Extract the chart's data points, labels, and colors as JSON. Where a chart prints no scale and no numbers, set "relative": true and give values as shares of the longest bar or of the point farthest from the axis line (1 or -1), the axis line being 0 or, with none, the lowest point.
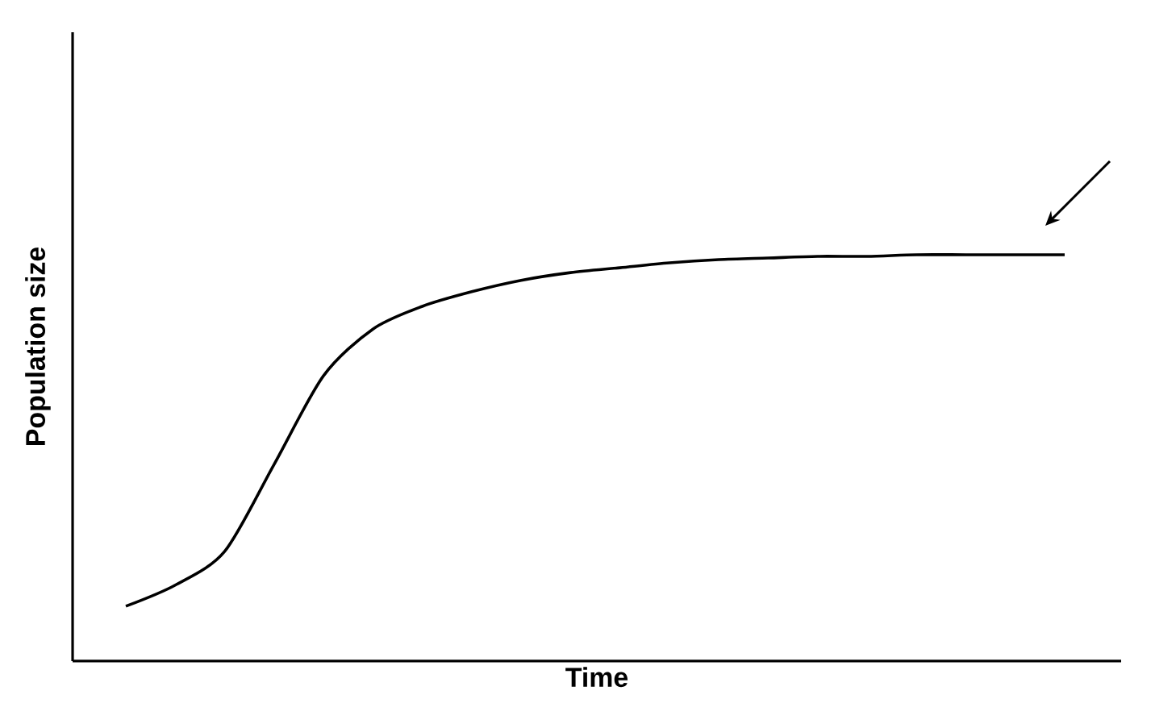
{
  "chart_data": {
    "type": "line",
    "xlabel": "Time",
    "ylabel": "Population size",
    "relative": true,
    "categories": [
      null,
      null,
      null,
      null,
      null,
      null,
      null,
      null,
      null,
      null,
      null,
      null,
      null,
      null,
      null,
      null,
      null,
      null,
      null,
      null
    ],
    "series": [
      {
        "color": "#000000",
        "values": [
          0.135,
          0.187,
          0.27,
          0.484,
          0.702,
          0.817,
          0.873,
          0.909,
          0.937,
          0.956,
          0.968,
          0.98,
          0.988,
          0.992,
          0.996,
          0.996,
          1,
          1,
          1,
          1
        ]
      }
    ]
  }
}
